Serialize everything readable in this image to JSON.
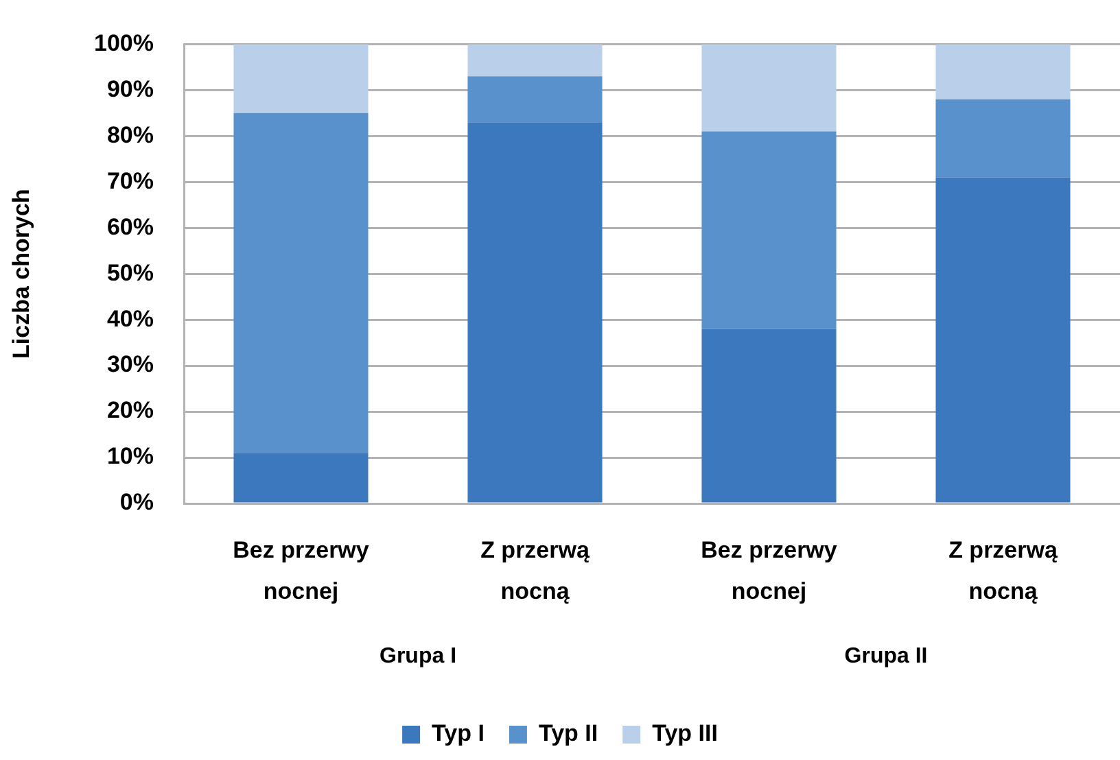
{
  "chart_data": {
    "type": "bar",
    "stacked": true,
    "ylabel": "Liczba chorych",
    "categories": [
      "Bez przerwy nocnej",
      "Z przerwą nocną",
      "Bez przerwy nocnej",
      "Z przerwą nocną"
    ],
    "annotations": [
      "Grupa I",
      "Grupa II"
    ],
    "series": [
      {
        "name": "Typ I",
        "color": "#3c78bd",
        "values": [
          11,
          83,
          38,
          71
        ]
      },
      {
        "name": "Typ II",
        "color": "#5891cb",
        "values": [
          74,
          10,
          43,
          17
        ]
      },
      {
        "name": "Typ III",
        "color": "#bad0ea",
        "values": [
          15,
          7,
          19,
          12
        ]
      }
    ],
    "ylim": [
      0,
      100
    ],
    "yticks": [
      {
        "value": 0,
        "label": "0%"
      },
      {
        "value": 10,
        "label": "10%"
      },
      {
        "value": 20,
        "label": "20%"
      },
      {
        "value": 30,
        "label": "30%"
      },
      {
        "value": 40,
        "label": "40%"
      },
      {
        "value": 50,
        "label": "50%"
      },
      {
        "value": 60,
        "label": "60%"
      },
      {
        "value": 70,
        "label": "70%"
      },
      {
        "value": 80,
        "label": "80%"
      },
      {
        "value": 90,
        "label": "90%"
      },
      {
        "value": 100,
        "label": "100%"
      }
    ],
    "grid": "y",
    "legend": "bottom"
  }
}
